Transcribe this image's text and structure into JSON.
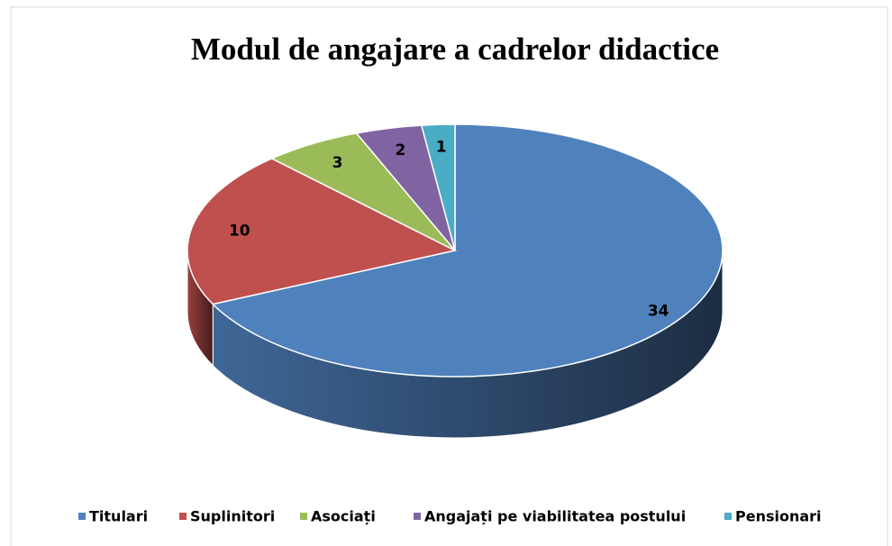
{
  "chart_data": {
    "type": "pie",
    "title": "Modul de angajare a cadrelor didactice",
    "categories": [
      "Titulari",
      "Suplinitori",
      "Asociați",
      "Angajați pe viabilitatea postului",
      "Pensionari"
    ],
    "values": [
      34,
      10,
      3,
      2,
      1
    ],
    "colors": [
      "#4f81bd",
      "#c0504d",
      "#9bbb59",
      "#8064a2",
      "#4bacc6"
    ],
    "legend": "bottom"
  }
}
